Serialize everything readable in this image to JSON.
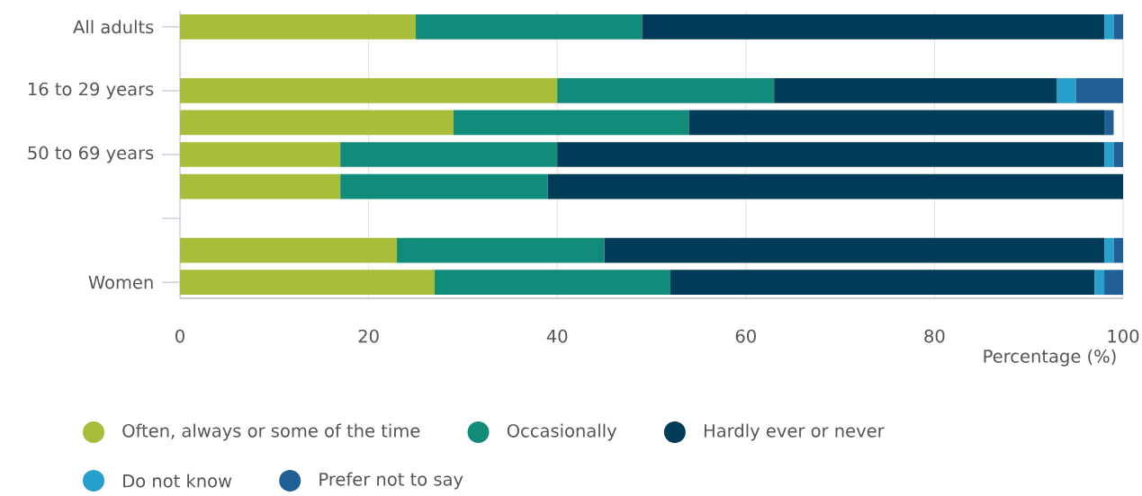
{
  "chart_data": {
    "type": "bar",
    "orientation": "horizontal",
    "stacked": true,
    "categories": [
      "All adults",
      null,
      "16 to 29 years",
      null,
      "50 to 69 years",
      null,
      null,
      null,
      "Women"
    ],
    "series": [
      {
        "name": "Often, always or some of the time",
        "color": "#a8bd3a",
        "values": [
          25,
          null,
          40,
          29,
          17,
          17,
          null,
          23,
          27
        ]
      },
      {
        "name": "Occasionally",
        "color": "#118c7b",
        "values": [
          24,
          null,
          23,
          25,
          23,
          22,
          null,
          22,
          25
        ]
      },
      {
        "name": "Hardly ever or never",
        "color": "#003c57",
        "values": [
          49,
          null,
          30,
          44,
          58,
          61,
          null,
          53,
          45
        ]
      },
      {
        "name": "Do not know",
        "color": "#27a0cc",
        "values": [
          1,
          null,
          2,
          null,
          1,
          null,
          null,
          1,
          1
        ]
      },
      {
        "name": "Prefer not to say",
        "color": "#206095",
        "values": [
          1,
          null,
          5,
          1,
          1,
          null,
          null,
          1,
          2
        ]
      }
    ],
    "xlabel": "Percentage (%)",
    "xlim": [
      0,
      100
    ],
    "xticks": [
      0,
      20,
      40,
      60,
      80,
      100
    ],
    "grid": "x",
    "legend": "bottom"
  }
}
